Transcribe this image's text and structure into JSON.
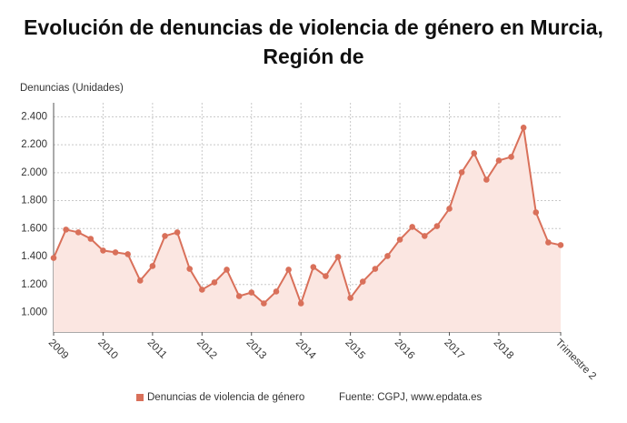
{
  "chart_data": {
    "type": "line",
    "title": "Evolución de denuncias de violencia de género en Murcia, Región de",
    "y_label": "Denuncias (Unidades)",
    "source": "Fuente: CGPJ, www.epdata.es",
    "categories": [
      "2009",
      null,
      null,
      null,
      "2010",
      null,
      null,
      null,
      "2011",
      null,
      null,
      null,
      "2012",
      null,
      null,
      null,
      "2013",
      null,
      null,
      null,
      "2014",
      null,
      null,
      null,
      "2015",
      null,
      null,
      null,
      "2016",
      null,
      null,
      null,
      "2017",
      null,
      null,
      null,
      "2018",
      null,
      null,
      null,
      null,
      "Trimestre 2"
    ],
    "series": [
      {
        "name": "Denuncias de violencia de género",
        "color": "#d9705a",
        "values": [
          1390,
          1593,
          1573,
          1527,
          1443,
          1430,
          1417,
          1228,
          1332,
          1547,
          1573,
          1312,
          1163,
          1215,
          1306,
          1117,
          1143,
          1065,
          1150,
          1306,
          1065,
          1325,
          1260,
          1397,
          1104,
          1221,
          1312,
          1404,
          1521,
          1612,
          1547,
          1618,
          1742,
          2003,
          2139,
          1950,
          2087,
          2113,
          2322,
          1716,
          1501,
          1482
        ]
      }
    ],
    "ylim": [
      860,
      2500
    ],
    "yticks": [
      {
        "value": 1000,
        "label": "1.000"
      },
      {
        "value": 1200,
        "label": "1.200"
      },
      {
        "value": 1400,
        "label": "1.400"
      },
      {
        "value": 1600,
        "label": "1.600"
      },
      {
        "value": 1800,
        "label": "1.800"
      },
      {
        "value": 2000,
        "label": "2.000"
      },
      {
        "value": 2200,
        "label": "2.200"
      },
      {
        "value": 2400,
        "label": "2.400"
      }
    ],
    "grid": true,
    "area_color": "#fbe6e1"
  }
}
